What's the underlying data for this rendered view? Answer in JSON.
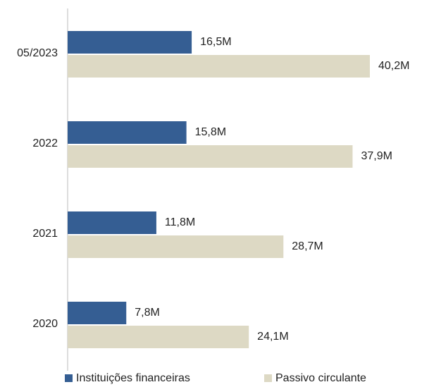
{
  "chart_data": {
    "type": "bar",
    "orientation": "horizontal",
    "categories": [
      "05/2023",
      "2022",
      "2021",
      "2020"
    ],
    "series": [
      {
        "name": "Instituições financeiras",
        "color": "#355e93",
        "values": [
          16.5,
          15.8,
          11.8,
          7.8
        ],
        "value_labels": [
          "16,5M",
          "15,8M",
          "11,8M",
          "7,8M"
        ]
      },
      {
        "name": "Passivo circulante",
        "color": "#ddd9c4",
        "values": [
          40.2,
          37.9,
          28.7,
          24.1
        ],
        "value_labels": [
          "40,2M",
          "37,9M",
          "28,7M",
          "24,1M"
        ]
      }
    ],
    "legend": "bottom"
  }
}
